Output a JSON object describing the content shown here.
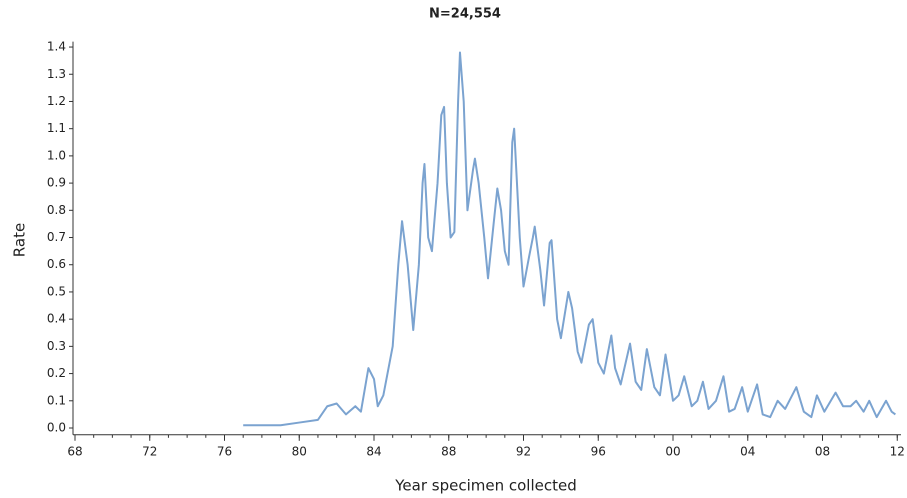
{
  "chart_data": {
    "type": "line",
    "title": "N=24,554",
    "xlabel": "Year specimen collected",
    "ylabel": "Rate",
    "color": "#7ba3d0",
    "x": [
      1977.0,
      1979.0,
      1980.0,
      1981.0,
      1981.5,
      1982.0,
      1982.5,
      1983.0,
      1983.3,
      1983.7,
      1984.0,
      1984.2,
      1984.5,
      1985.0,
      1985.3,
      1985.5,
      1985.8,
      1986.1,
      1986.4,
      1986.6,
      1986.7,
      1986.9,
      1987.1,
      1987.4,
      1987.6,
      1987.75,
      1987.9,
      1988.1,
      1988.3,
      1988.5,
      1988.6,
      1988.8,
      1989.0,
      1989.3,
      1989.4,
      1989.6,
      1989.9,
      1990.1,
      1990.4,
      1990.6,
      1990.8,
      1991.0,
      1991.2,
      1991.4,
      1991.5,
      1991.8,
      1992.0,
      1992.3,
      1992.5,
      1992.6,
      1992.9,
      1993.1,
      1993.4,
      1993.5,
      1993.8,
      1994.0,
      1994.4,
      1994.6,
      1994.9,
      1995.1,
      1995.5,
      1995.7,
      1996.0,
      1996.3,
      1996.7,
      1996.9,
      1997.2,
      1997.7,
      1998.0,
      1998.3,
      1998.6,
      1999.0,
      1999.3,
      1999.6,
      2000.0,
      2000.3,
      2000.6,
      2001.0,
      2001.3,
      2001.6,
      2001.9,
      2002.3,
      2002.7,
      2003.0,
      2003.3,
      2003.7,
      2004.0,
      2004.5,
      2004.8,
      2005.2,
      2005.6,
      2006.0,
      2006.6,
      2007.0,
      2007.4,
      2007.7,
      2008.1,
      2008.7,
      2009.1,
      2009.5,
      2009.8,
      2010.2,
      2010.5,
      2010.9,
      2011.4,
      2011.7,
      2011.9
    ],
    "values": [
      0.01,
      0.01,
      0.02,
      0.03,
      0.08,
      0.09,
      0.05,
      0.08,
      0.06,
      0.22,
      0.18,
      0.08,
      0.12,
      0.3,
      0.6,
      0.76,
      0.6,
      0.36,
      0.6,
      0.9,
      0.97,
      0.7,
      0.65,
      0.9,
      1.15,
      1.18,
      0.9,
      0.7,
      0.72,
      1.2,
      1.38,
      1.2,
      0.8,
      0.95,
      0.99,
      0.9,
      0.7,
      0.55,
      0.75,
      0.88,
      0.8,
      0.65,
      0.6,
      1.05,
      1.1,
      0.7,
      0.52,
      0.63,
      0.7,
      0.74,
      0.58,
      0.45,
      0.68,
      0.69,
      0.4,
      0.33,
      0.5,
      0.44,
      0.28,
      0.24,
      0.38,
      0.4,
      0.24,
      0.2,
      0.34,
      0.22,
      0.16,
      0.31,
      0.17,
      0.14,
      0.29,
      0.15,
      0.12,
      0.27,
      0.1,
      0.12,
      0.19,
      0.08,
      0.1,
      0.17,
      0.07,
      0.1,
      0.19,
      0.06,
      0.07,
      0.15,
      0.06,
      0.16,
      0.05,
      0.04,
      0.1,
      0.07,
      0.15,
      0.06,
      0.04,
      0.12,
      0.06,
      0.13,
      0.08,
      0.08,
      0.1,
      0.06,
      0.1,
      0.04,
      0.1,
      0.06,
      0.05
    ],
    "xlim": [
      1968,
      2012.2
    ],
    "xticks": [
      {
        "value": 1968,
        "label": "68"
      },
      {
        "value": 1972,
        "label": "72"
      },
      {
        "value": 1976,
        "label": "76"
      },
      {
        "value": 1980,
        "label": "80"
      },
      {
        "value": 1984,
        "label": "84"
      },
      {
        "value": 1988,
        "label": "88"
      },
      {
        "value": 1992,
        "label": "92"
      },
      {
        "value": 1996,
        "label": "96"
      },
      {
        "value": 2000,
        "label": "00"
      },
      {
        "value": 2004,
        "label": "04"
      },
      {
        "value": 2008,
        "label": "08"
      },
      {
        "value": 2012,
        "label": "12"
      }
    ],
    "ylim": [
      -0.025,
      1.42
    ],
    "yticks": [
      {
        "value": 0,
        "label": "0.0"
      },
      0.1,
      0.2,
      0.3,
      0.4,
      0.5,
      0.6,
      0.7,
      0.8,
      0.9,
      {
        "value": 1,
        "label": "1.0"
      },
      1.1,
      1.2,
      1.3,
      1.4
    ]
  }
}
